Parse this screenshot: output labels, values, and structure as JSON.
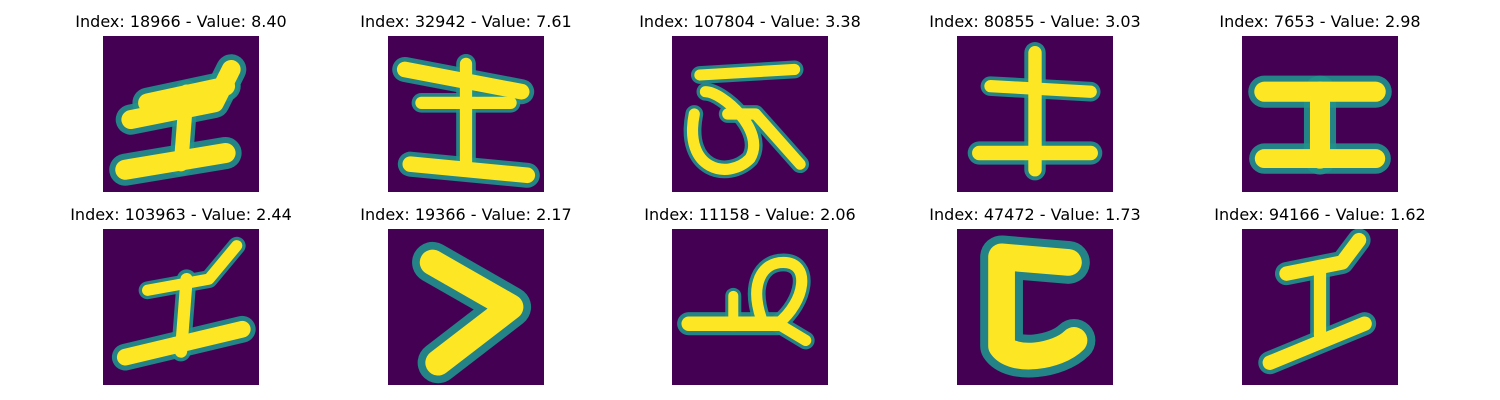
{
  "colormap": {
    "background": "#440154",
    "stroke": "#fde725",
    "edge": "#21918c"
  },
  "panels": [
    {
      "title": "Index: 18966 - Value: 8.40",
      "glyph": "ko-i"
    },
    {
      "title": "Index: 32942 - Value: 7.61",
      "glyph": "tsuchi"
    },
    {
      "title": "Index: 107804 - Value: 3.38",
      "glyph": "ro-loop"
    },
    {
      "title": "Index: 80855 - Value: 3.03",
      "glyph": "tsuchi-cross"
    },
    {
      "title": "Index: 7653 - Value: 2.98",
      "glyph": "ko-i-block"
    },
    {
      "title": "Index: 103963 - Value: 2.44",
      "glyph": "ko-i-slanted"
    },
    {
      "title": "Index: 19366 - Value: 2.17",
      "glyph": "chevron"
    },
    {
      "title": "Index: 11158 - Value: 2.06",
      "glyph": "loop-base"
    },
    {
      "title": "Index: 47472 - Value: 1.73",
      "glyph": "c-shape"
    },
    {
      "title": "Index: 94166 - Value: 1.62",
      "glyph": "ko-i-thin"
    }
  ]
}
